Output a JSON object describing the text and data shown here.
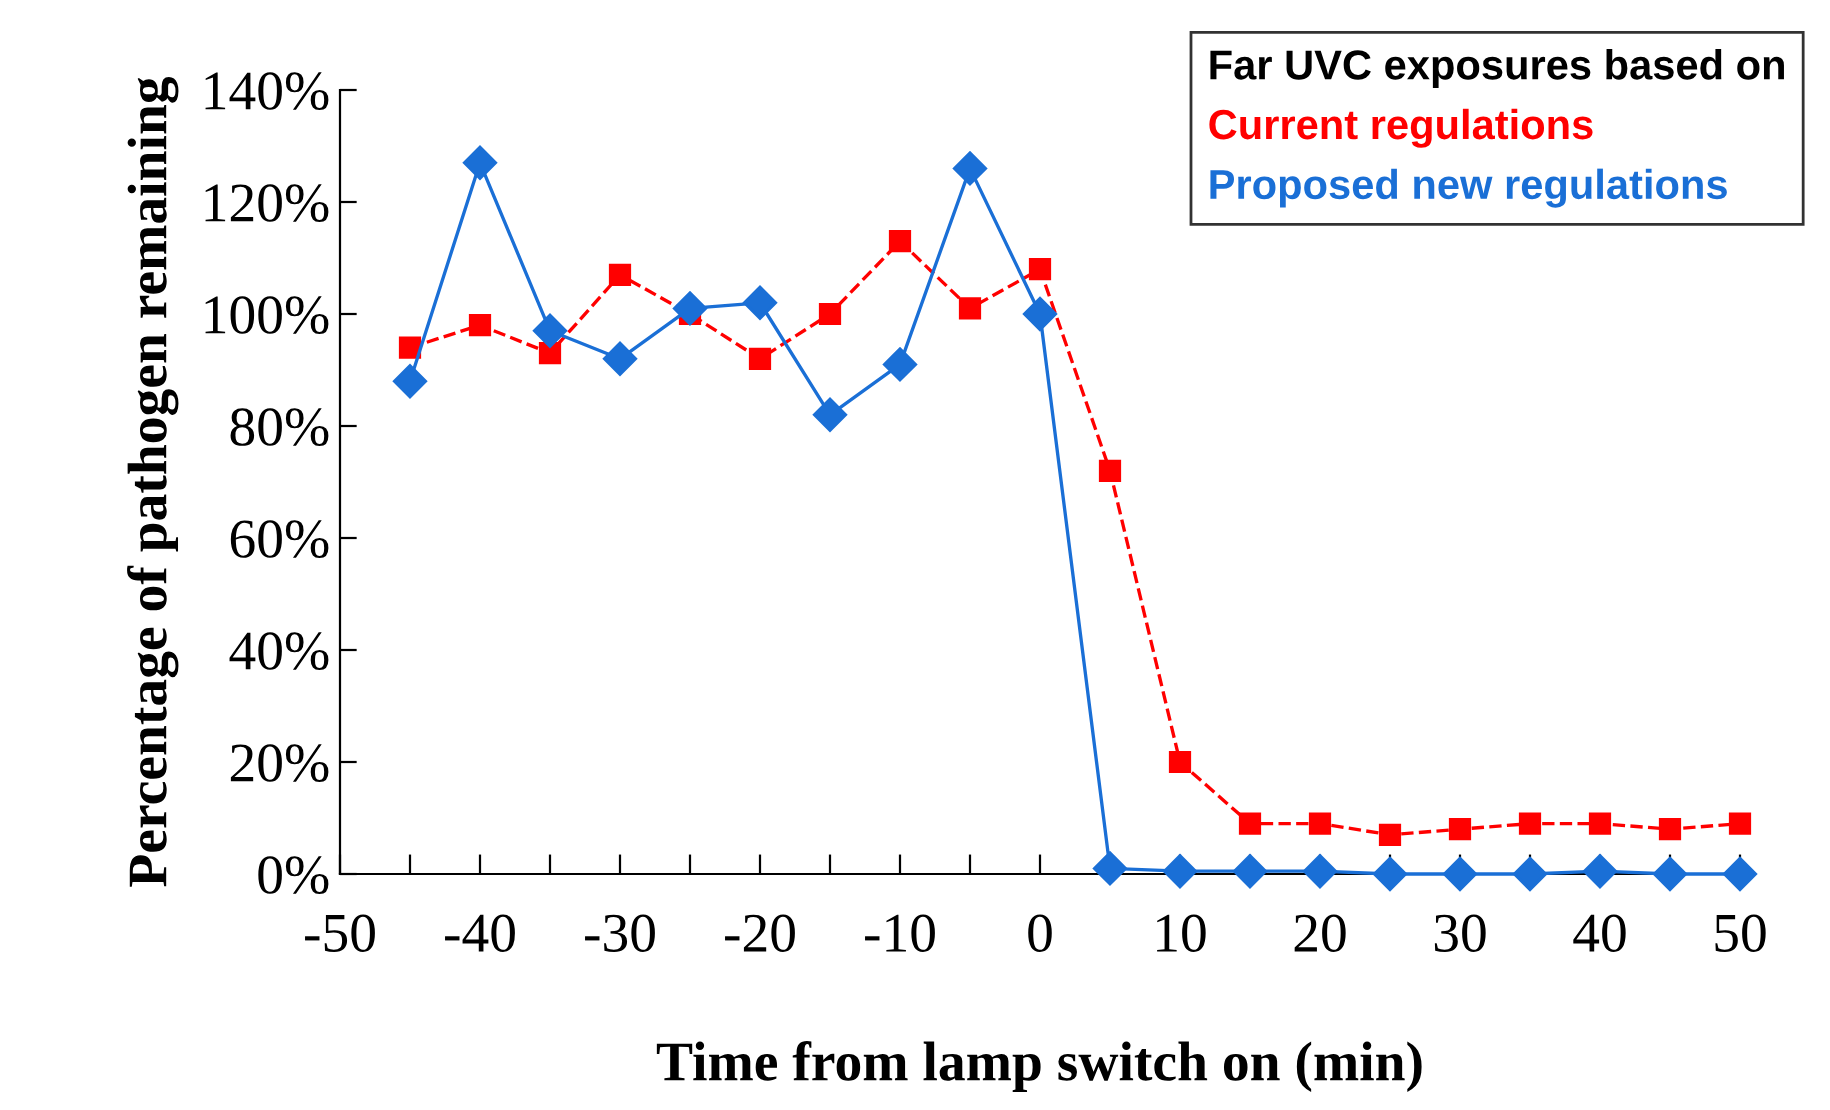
{
  "chart_data": {
    "type": "line",
    "xlabel": "Time from lamp switch on (min)",
    "ylabel": "Percentage of pathogen remaining",
    "legend_title": "Far UVC exposures based on",
    "legend": "top right",
    "x": [
      -45,
      -40,
      -35,
      -30,
      -25,
      -20,
      -15,
      -10,
      -5,
      0,
      5,
      10,
      15,
      20,
      25,
      30,
      35,
      40,
      45,
      50
    ],
    "series": [
      {
        "name": "Current regulations",
        "color": "#ff0000",
        "marker": "square",
        "line_style": "dashed",
        "values": [
          94,
          98,
          93,
          107,
          100,
          92,
          100,
          113,
          101,
          108,
          72,
          20,
          9,
          9,
          7,
          8,
          9,
          9,
          8,
          9
        ]
      },
      {
        "name": "Proposed new regulations",
        "color": "#1a6fd6",
        "marker": "diamond",
        "line_style": "solid",
        "values": [
          88,
          127,
          97,
          92,
          101,
          102,
          82,
          91,
          126,
          100,
          1,
          0.5,
          0.5,
          0.5,
          0,
          0,
          0,
          0.5,
          0,
          0
        ]
      }
    ],
    "xlim": [
      -50,
      50
    ],
    "xticks": [
      -50,
      {
        "value": -45,
        "label": null
      },
      -40,
      {
        "value": -35,
        "label": null
      },
      -30,
      {
        "value": -25,
        "label": null
      },
      -20,
      {
        "value": -15,
        "label": null
      },
      -10,
      {
        "value": -5,
        "label": null
      },
      0,
      {
        "value": 5,
        "label": null
      },
      10,
      {
        "value": 15,
        "label": null
      },
      20,
      {
        "value": 25,
        "label": null
      },
      30,
      {
        "value": 35,
        "label": null
      },
      40,
      {
        "value": 45,
        "label": null
      },
      50
    ],
    "ylim": [
      0,
      140
    ],
    "yticks": [
      {
        "value": 0,
        "label": "0%"
      },
      {
        "value": 20,
        "label": "20%"
      },
      {
        "value": 40,
        "label": "40%"
      },
      {
        "value": 60,
        "label": "60%"
      },
      {
        "value": 80,
        "label": "80%"
      },
      {
        "value": 100,
        "label": "100%"
      },
      {
        "value": 120,
        "label": "120%"
      },
      {
        "value": 140,
        "label": "140%"
      }
    ],
    "grid": false
  }
}
